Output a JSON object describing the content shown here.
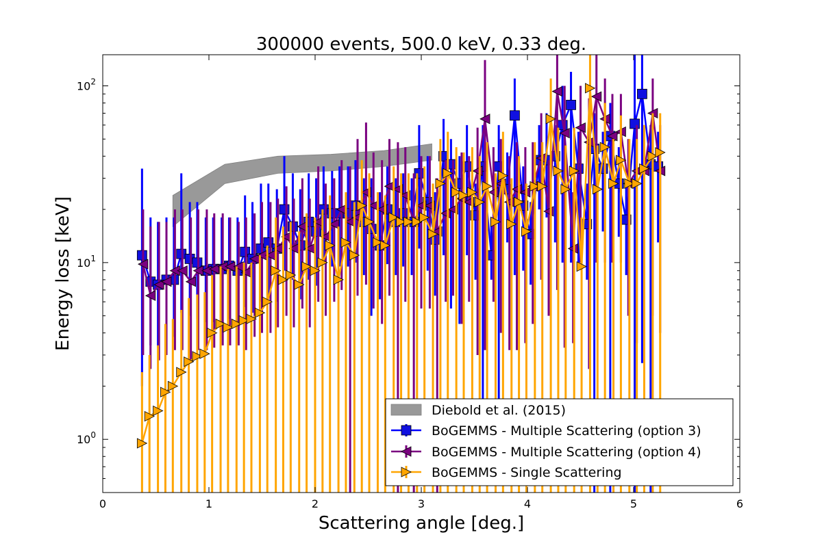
{
  "chart_data": {
    "type": "line",
    "title": "300000 events, 500.0 keV, 0.33 deg.",
    "xlabel": "Scattering angle [deg.]",
    "ylabel": "Energy loss [keV]",
    "xlim": [
      0,
      6
    ],
    "ylim": [
      0.5,
      150
    ],
    "yscale": "log",
    "x_ticks": [
      "0",
      "1",
      "2",
      "3",
      "4",
      "5",
      "6"
    ],
    "y_ticks": [
      {
        "base": "10",
        "exp": "0",
        "value": 1
      },
      {
        "base": "10",
        "exp": "1",
        "value": 10
      },
      {
        "base": "10",
        "exp": "2",
        "value": 100
      }
    ],
    "legend_position": "lower-right",
    "band": {
      "name": "Diebold et al. (2015)",
      "color": "#999999",
      "x": [
        0.66,
        1.15,
        1.65,
        2.15,
        2.65,
        3.1
      ],
      "low": [
        16,
        28,
        32,
        33,
        35,
        38
      ],
      "high": [
        24,
        36,
        40,
        41,
        43,
        47
      ]
    },
    "series": [
      {
        "name": "BoGEMMS - Multiple Scattering (option 3)",
        "color": "#0000ff",
        "fill": "#1010e0",
        "marker": "square",
        "x": [
          0.37,
          0.45,
          0.52,
          0.6,
          0.67,
          0.74,
          0.82,
          0.89,
          0.97,
          1.04,
          1.12,
          1.19,
          1.27,
          1.34,
          1.41,
          1.49,
          1.56,
          1.64,
          1.71,
          1.79,
          1.86,
          1.94,
          2.01,
          2.08,
          2.16,
          2.23,
          2.31,
          2.38,
          2.46,
          2.53,
          2.61,
          2.68,
          2.76,
          2.83,
          2.91,
          2.98,
          3.06,
          3.13,
          3.21,
          3.28,
          3.36,
          3.43,
          3.51,
          3.58,
          3.66,
          3.73,
          3.81,
          3.88,
          3.96,
          4.03,
          4.11,
          4.18,
          4.26,
          4.33,
          4.41,
          4.48,
          4.56,
          4.63,
          4.71,
          4.78,
          4.86,
          4.93,
          5.01,
          5.08,
          5.16,
          5.23
        ],
        "y": [
          11,
          7.8,
          7.5,
          8,
          8,
          11.2,
          10.5,
          10,
          9,
          9.2,
          9.2,
          9.6,
          9,
          11.5,
          10.5,
          12,
          13,
          12,
          20,
          16,
          12.5,
          17,
          15,
          20,
          19,
          19,
          19,
          21,
          17,
          15.5,
          12.5,
          20,
          17,
          19,
          17,
          32,
          22,
          13.5,
          40,
          36,
          28,
          35,
          18.5,
          35,
          11,
          35,
          26,
          68,
          21,
          14.5,
          38,
          38,
          40,
          60,
          78,
          34,
          16.5,
          44,
          34,
          52,
          28,
          17.5,
          61,
          90,
          36,
          35
        ],
        "err_low": [
          8,
          0,
          0,
          0,
          0,
          0,
          0,
          0,
          0,
          0,
          0,
          0,
          0,
          0,
          0,
          0,
          0,
          0,
          0,
          0,
          0,
          0,
          0,
          0,
          0,
          0,
          0,
          0,
          0,
          0,
          0,
          0,
          0,
          0,
          0,
          0,
          0,
          0,
          0,
          0,
          0,
          0,
          0,
          0,
          0,
          0,
          0,
          0,
          0,
          0,
          0,
          0,
          0,
          0,
          0,
          0,
          0,
          0,
          0,
          0,
          0,
          0,
          0,
          0,
          0,
          22
        ],
        "err_high": [
          34,
          18,
          17,
          18,
          18,
          32,
          22,
          22,
          18,
          18,
          18,
          18,
          18,
          24,
          22,
          28,
          28,
          26,
          40,
          32,
          26,
          32,
          30,
          35,
          33,
          35,
          35,
          38,
          30,
          30,
          25,
          35,
          30,
          32,
          30,
          60,
          40,
          25,
          65,
          50,
          40,
          60,
          28,
          60,
          18,
          60,
          42,
          110,
          35,
          22,
          60,
          70,
          60,
          100,
          120,
          55,
          28,
          70,
          55,
          80,
          45,
          28,
          150,
          170,
          60,
          55
        ],
        "err_draw_low": [
          2,
          3.4,
          3.3,
          3.8,
          3.8,
          5.2,
          5,
          4.8,
          4.6,
          4.6,
          4.6,
          4.8,
          4.6,
          5.6,
          5.2,
          6,
          6.5,
          6,
          9,
          8,
          6.2,
          8,
          7.4,
          10,
          9.5,
          9.5,
          9.5,
          10,
          8.5,
          5,
          6.2,
          9.8,
          8.5,
          9.5,
          8.5,
          12,
          9,
          6.5,
          11,
          5.5,
          4.5,
          11,
          8,
          1.5,
          8,
          1.5,
          13,
          8.5,
          9,
          7.5,
          20,
          18,
          13,
          10,
          10,
          10,
          8,
          0.3,
          15,
          0.3,
          14,
          8.5,
          0.3,
          2.7,
          0.3,
          13
        ]
      },
      {
        "name": "BoGEMMS - Multiple Scattering (option 4)",
        "color": "#7a0080",
        "fill": "#7a0080",
        "marker": "triangle-left",
        "x": [
          0.38,
          0.45,
          0.53,
          0.6,
          0.68,
          0.75,
          0.83,
          0.9,
          0.98,
          1.05,
          1.13,
          1.2,
          1.28,
          1.35,
          1.43,
          1.5,
          1.58,
          1.65,
          1.73,
          1.8,
          1.88,
          1.95,
          2.03,
          2.1,
          2.18,
          2.25,
          2.33,
          2.4,
          2.48,
          2.55,
          2.63,
          2.7,
          2.78,
          2.85,
          2.93,
          3.0,
          3.08,
          3.15,
          3.23,
          3.3,
          3.38,
          3.45,
          3.53,
          3.6,
          3.68,
          3.75,
          3.83,
          3.9,
          3.98,
          4.05,
          4.13,
          4.2,
          4.28,
          4.35,
          4.43,
          4.5,
          4.58,
          4.65,
          4.73,
          4.8,
          4.88,
          4.95,
          5.03,
          5.1,
          5.18,
          5.25
        ],
        "y": [
          9.8,
          6.5,
          7.5,
          7.8,
          9,
          9,
          7.8,
          9,
          9,
          9.2,
          9.5,
          9.5,
          9.5,
          8.8,
          10.5,
          11,
          11,
          12,
          14,
          12,
          16,
          12,
          17,
          14,
          16.5,
          20,
          17,
          18,
          25,
          21,
          20,
          27,
          26,
          24,
          17,
          21,
          21,
          15,
          19,
          20,
          23,
          22,
          33,
          65,
          25,
          28,
          22,
          26,
          25,
          27,
          39,
          19.5,
          93,
          54,
          12,
          58,
          48,
          87,
          65,
          52,
          55,
          28,
          33,
          33,
          70,
          33
        ],
        "err_draw_low": [
          3,
          2.5,
          2.8,
          3,
          3.2,
          3.2,
          2.8,
          3.2,
          3.2,
          3.3,
          3.4,
          3.4,
          3.4,
          3.2,
          3.8,
          4,
          4,
          4.3,
          5,
          4.3,
          5.5,
          4.3,
          6,
          5,
          6,
          7,
          0.3,
          6.5,
          7.5,
          5.5,
          4.5,
          6.5,
          0.3,
          6,
          0.3,
          5.5,
          5.5,
          0.3,
          6,
          6.5,
          4.5,
          6,
          3,
          3.2,
          6,
          4,
          3.2,
          3.2,
          3.5,
          4.5,
          8,
          5,
          7,
          3.3,
          3.5,
          10,
          2.5,
          10,
          10,
          10,
          10,
          5,
          3.5,
          3.5,
          5,
          4
        ],
        "err_high": [
          20,
          16,
          17,
          17,
          20,
          20,
          18,
          20,
          20,
          19,
          19,
          18,
          17,
          18,
          19,
          22,
          22,
          23,
          27,
          23,
          30,
          23,
          35,
          28,
          30,
          38,
          35,
          50,
          62,
          42,
          38,
          50,
          48,
          45,
          32,
          40,
          40,
          30,
          38,
          38,
          42,
          40,
          58,
          140,
          45,
          50,
          40,
          48,
          45,
          48,
          70,
          38,
          150,
          100,
          25,
          100,
          85,
          150,
          110,
          90,
          90,
          50,
          60,
          60,
          110,
          60
        ]
      },
      {
        "name": "BoGEMMS - Single Scattering",
        "color": "#ffa500",
        "fill": "#ffa500",
        "marker": "triangle-right",
        "x": [
          0.37,
          0.44,
          0.52,
          0.59,
          0.66,
          0.74,
          0.81,
          0.89,
          0.96,
          1.03,
          1.11,
          1.18,
          1.26,
          1.33,
          1.4,
          1.48,
          1.55,
          1.63,
          1.7,
          1.77,
          1.85,
          1.92,
          2.0,
          2.07,
          2.14,
          2.22,
          2.29,
          2.37,
          2.44,
          2.51,
          2.59,
          2.66,
          2.74,
          2.81,
          2.88,
          2.96,
          3.03,
          3.11,
          3.18,
          3.25,
          3.33,
          3.4,
          3.48,
          3.55,
          3.62,
          3.7,
          3.77,
          3.85,
          3.92,
          3.99,
          4.07,
          4.14,
          4.22,
          4.29,
          4.36,
          4.44,
          4.51,
          4.59,
          4.66,
          4.73,
          4.81,
          4.88,
          4.96,
          5.03,
          5.1,
          5.18,
          5.25
        ],
        "y": [
          0.95,
          1.35,
          1.45,
          1.85,
          2,
          2.4,
          2.75,
          2.95,
          3.05,
          4,
          4.5,
          4.3,
          4.5,
          4.7,
          4.8,
          5.2,
          6,
          9,
          8,
          8.5,
          7.5,
          9.5,
          9,
          10,
          12.5,
          8,
          13,
          11,
          21,
          17,
          13,
          12.5,
          18,
          17,
          17,
          17,
          18,
          14.5,
          28,
          32,
          25,
          24,
          25,
          22,
          27,
          17,
          31,
          16.5,
          22,
          15,
          27,
          27,
          65,
          33,
          26,
          33,
          9.5,
          97,
          26,
          45,
          28,
          38,
          28,
          28,
          34,
          40,
          42
        ],
        "err_draw_low": [
          0.3,
          0.3,
          0.3,
          0.3,
          0.3,
          0.3,
          0.3,
          0.3,
          0.3,
          0.3,
          0.3,
          0.3,
          0.3,
          0.3,
          0.3,
          0.3,
          0.3,
          0.3,
          0.3,
          0.3,
          0.3,
          0.3,
          0.3,
          0.3,
          0.3,
          0.3,
          0.3,
          0.3,
          0.3,
          0.3,
          0.3,
          0.3,
          0.3,
          0.3,
          0.3,
          0.3,
          0.3,
          0.3,
          0.3,
          0.3,
          0.3,
          0.3,
          0.3,
          0.3,
          0.3,
          0.3,
          0.3,
          0.3,
          0.3,
          0.3,
          0.3,
          0.3,
          0.3,
          0.3,
          0.3,
          0.3,
          0.3,
          0.3,
          0.3,
          0.3,
          0.3,
          0.3,
          0.3,
          0.3,
          0.3,
          0.3,
          0.3
        ],
        "err_high": [
          2.4,
          3,
          3.4,
          4.5,
          4.8,
          5.4,
          6.3,
          6.6,
          6.8,
          8.5,
          9.5,
          9.2,
          9.5,
          10,
          10,
          11,
          12.5,
          18,
          16,
          17,
          15,
          19,
          18,
          20,
          24,
          16,
          25,
          22,
          38,
          32,
          25,
          24,
          35,
          32,
          32,
          32,
          35,
          28,
          50,
          55,
          45,
          42,
          45,
          40,
          48,
          32,
          55,
          30,
          40,
          28,
          48,
          48,
          110,
          58,
          46,
          58,
          18,
          170,
          46,
          80,
          50,
          68,
          50,
          50,
          60,
          70,
          70
        ]
      }
    ]
  }
}
